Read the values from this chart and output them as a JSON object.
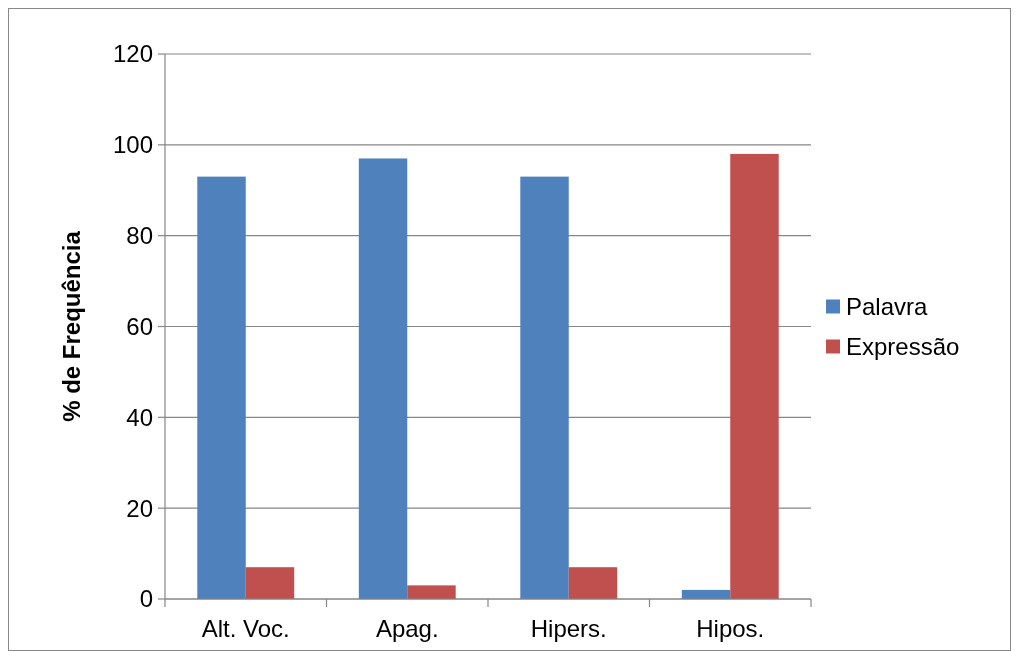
{
  "chart_data": {
    "type": "bar",
    "ylabel": "% de Frequência",
    "categories": [
      "Alt. Voc.",
      "Apag.",
      "Hipers.",
      "Hipos."
    ],
    "series": [
      {
        "name": "Palavra",
        "color": "#4f81bd",
        "values": [
          93,
          97,
          93,
          2
        ]
      },
      {
        "name": "Expressão",
        "color": "#c0504d",
        "values": [
          7,
          3,
          7,
          98
        ]
      }
    ],
    "ylim": [
      0,
      120
    ],
    "yticks": [
      0,
      20,
      40,
      60,
      80,
      100,
      120
    ],
    "grid": "y",
    "legend": "right"
  }
}
